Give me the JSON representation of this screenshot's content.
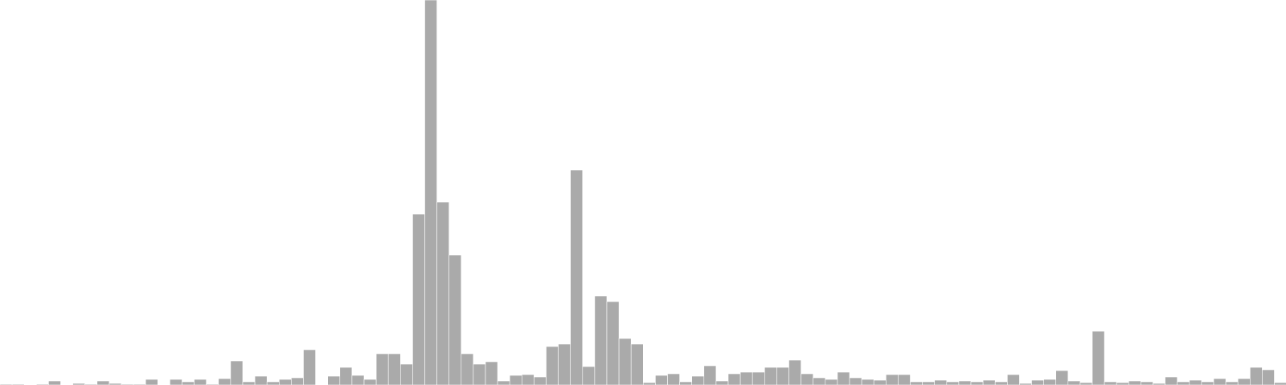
{
  "chart_data": {
    "type": "bar",
    "bar_color": "#aaaaaa",
    "background": "#ffffff",
    "grid": false,
    "axes_visible": false,
    "ylim": [
      0,
      480
    ],
    "values": [
      1,
      1,
      0,
      1,
      5,
      0,
      2,
      1,
      5,
      2,
      1,
      1,
      7,
      0,
      7,
      4,
      7,
      1,
      8,
      30,
      4,
      11,
      4,
      7,
      9,
      44,
      0,
      11,
      22,
      12,
      7,
      39,
      39,
      26,
      213,
      480,
      228,
      162,
      39,
      26,
      29,
      5,
      12,
      13,
      10,
      48,
      51,
      268,
      23,
      111,
      104,
      58,
      51,
      3,
      12,
      14,
      4,
      11,
      24,
      5,
      14,
      16,
      16,
      22,
      22,
      31,
      14,
      9,
      7,
      16,
      9,
      7,
      6,
      13,
      13,
      4,
      4,
      6,
      4,
      5,
      4,
      6,
      4,
      13,
      2,
      6,
      7,
      18,
      5,
      3,
      67,
      4,
      3,
      5,
      4,
      2,
      10,
      4,
      6,
      4,
      8,
      4,
      8,
      22,
      19,
      3
    ]
  }
}
